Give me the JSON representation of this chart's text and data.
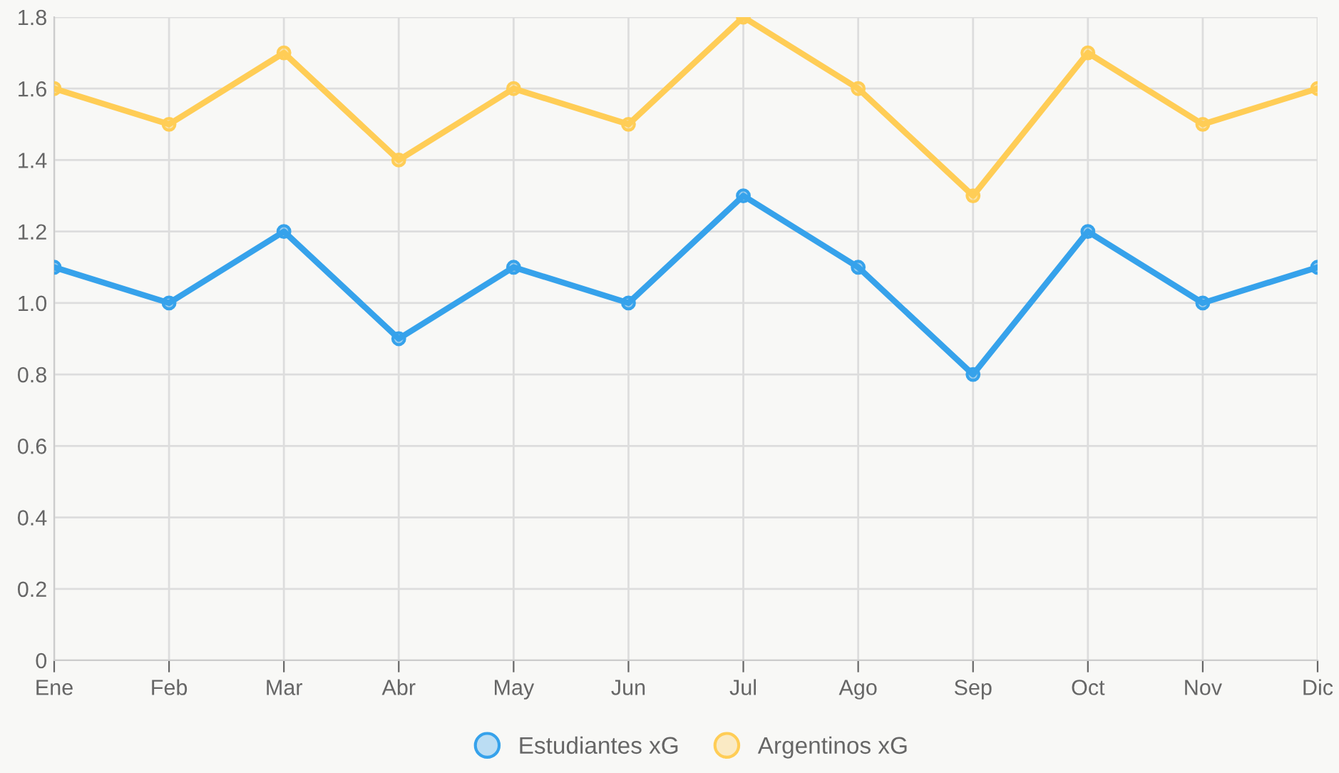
{
  "chart_data": {
    "type": "line",
    "categories": [
      "Ene",
      "Feb",
      "Mar",
      "Abr",
      "May",
      "Jun",
      "Jul",
      "Ago",
      "Sep",
      "Oct",
      "Nov",
      "Dic"
    ],
    "series": [
      {
        "name": "Estudiantes xG",
        "color": "#36a2eb",
        "values": [
          1.1,
          1.0,
          1.2,
          0.9,
          1.1,
          1.0,
          1.3,
          1.1,
          0.8,
          1.2,
          1.0,
          1.1
        ]
      },
      {
        "name": "Argentinos xG",
        "color": "#ffcd56",
        "values": [
          1.6,
          1.5,
          1.7,
          1.4,
          1.6,
          1.5,
          1.8,
          1.6,
          1.3,
          1.7,
          1.5,
          1.6
        ]
      }
    ],
    "ylim": [
      0,
      1.8
    ],
    "yticks": [
      0,
      0.2,
      0.4,
      0.6,
      0.8,
      {
        "value": 1,
        "label": "1.0"
      },
      1.2,
      1.4,
      1.6,
      1.8
    ],
    "grid": true,
    "legend": "bottom",
    "marker": "circle",
    "line_style": "solid"
  }
}
